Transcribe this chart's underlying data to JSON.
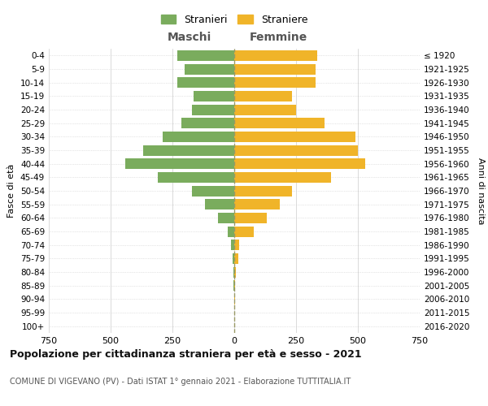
{
  "age_groups": [
    "0-4",
    "5-9",
    "10-14",
    "15-19",
    "20-24",
    "25-29",
    "30-34",
    "35-39",
    "40-44",
    "45-49",
    "50-54",
    "55-59",
    "60-64",
    "65-69",
    "70-74",
    "75-79",
    "80-84",
    "85-89",
    "90-94",
    "95-99",
    "100+"
  ],
  "birth_years": [
    "2016-2020",
    "2011-2015",
    "2006-2010",
    "2001-2005",
    "1996-2000",
    "1991-1995",
    "1986-1990",
    "1981-1985",
    "1976-1980",
    "1971-1975",
    "1966-1970",
    "1961-1965",
    "1956-1960",
    "1951-1955",
    "1946-1950",
    "1941-1945",
    "1936-1940",
    "1931-1935",
    "1926-1930",
    "1921-1925",
    "≤ 1920"
  ],
  "males": [
    230,
    200,
    230,
    165,
    170,
    215,
    290,
    370,
    440,
    310,
    170,
    120,
    65,
    25,
    12,
    8,
    3,
    2,
    0,
    0,
    0
  ],
  "females": [
    335,
    330,
    330,
    235,
    250,
    365,
    490,
    500,
    530,
    390,
    235,
    185,
    130,
    80,
    20,
    15,
    5,
    3,
    2,
    0,
    0
  ],
  "male_color": "#7aac5d",
  "female_color": "#f0b429",
  "male_label": "Stranieri",
  "female_label": "Straniere",
  "xlabel_left": "Maschi",
  "xlabel_right": "Femmine",
  "ylabel_left": "Fasce di età",
  "ylabel_right": "Anni di nascita",
  "title": "Popolazione per cittadinanza straniera per età e sesso - 2021",
  "subtitle": "COMUNE DI VIGEVANO (PV) - Dati ISTAT 1° gennaio 2021 - Elaborazione TUTTITALIA.IT",
  "xlim": 750,
  "background_color": "#ffffff",
  "grid_color": "#cccccc",
  "dashed_line_color": "#999966"
}
